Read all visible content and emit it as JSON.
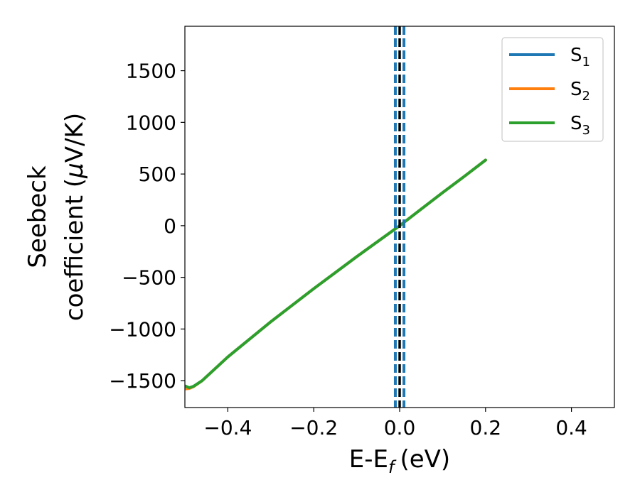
{
  "chart_data": {
    "type": "line",
    "xlabel_base": "E-E",
    "xlabel_sub": "f",
    "xlabel_unit": "(eV)",
    "ylabel_line1": "Seebeck",
    "ylabel_line2_prefix": "coefficient  (",
    "ylabel_mu": "μ",
    "ylabel_line2_suffix": "V/K)",
    "xlim": [
      -0.5,
      0.5
    ],
    "ylim": [
      -1760,
      1930
    ],
    "xticks": [
      -0.4,
      -0.2,
      0.0,
      0.2,
      0.4
    ],
    "xtick_labels": [
      "−0.4",
      "−0.2",
      "0.0",
      "0.2",
      "0.4"
    ],
    "yticks": [
      -1500,
      -1000,
      -500,
      0,
      500,
      1000,
      1500
    ],
    "ytick_labels": [
      "−1500",
      "−1000",
      "−500",
      "0",
      "500",
      "1000",
      "1500"
    ],
    "grid": false,
    "legend_placement": "top-right",
    "series": [
      {
        "name_base": "S",
        "name_sub": "1",
        "color": "#1f77b4",
        "x": [
          -0.5,
          -0.49,
          -0.48,
          -0.46,
          -0.4,
          -0.3,
          -0.2,
          -0.1,
          0.0,
          0.05,
          0.1,
          0.15,
          0.2
        ],
        "y": [
          -1560,
          -1570,
          -1555,
          -1500,
          -1270,
          -930,
          -610,
          -300,
          0,
          160,
          320,
          475,
          635
        ]
      },
      {
        "name_base": "S",
        "name_sub": "2",
        "color": "#ff7f0e",
        "x": [
          -0.5,
          -0.49,
          -0.48,
          -0.46,
          -0.4,
          -0.3,
          -0.2,
          -0.1,
          0.0,
          0.05,
          0.1,
          0.15,
          0.2
        ],
        "y": [
          -1580,
          -1575,
          -1558,
          -1500,
          -1270,
          -930,
          -610,
          -300,
          0,
          160,
          320,
          475,
          635
        ]
      },
      {
        "name_base": "S",
        "name_sub": "3",
        "color": "#2ca02c",
        "x": [
          -0.5,
          -0.49,
          -0.48,
          -0.46,
          -0.4,
          -0.3,
          -0.2,
          -0.1,
          0.0,
          0.05,
          0.1,
          0.15,
          0.2
        ],
        "y": [
          -1550,
          -1568,
          -1555,
          -1500,
          -1270,
          -930,
          -610,
          -300,
          0,
          160,
          320,
          475,
          635
        ]
      }
    ],
    "vertical_lines": [
      {
        "x": -0.01,
        "color": "#1f77b4",
        "style": "dashed"
      },
      {
        "x": 0.01,
        "color": "#1f77b4",
        "style": "dashed"
      },
      {
        "x": 0.0,
        "color": "#000000",
        "style": "dashed"
      }
    ]
  }
}
